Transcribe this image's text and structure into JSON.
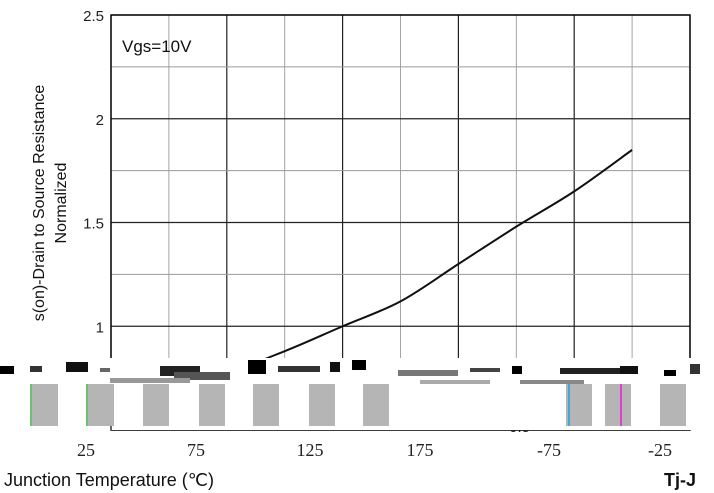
{
  "chart_data": {
    "type": "line",
    "title": "",
    "annotation": "Vgs=10V",
    "ylabel_line1": "RDS(on)-Drain to Source Resistance",
    "ylabel_visible_line1": "s(on)-Drain to Source Resistance",
    "ylabel_line2": "Normalized",
    "xlabel": "Junction Temperature (℃)",
    "xlabel_visible": "Junction Temperature (℃)",
    "xlabel_right_visible": "Tj-J",
    "ylim": [
      0.5,
      2.5
    ],
    "xlim": [
      -75,
      175
    ],
    "grid": true,
    "yticks": [
      "0.5",
      "1",
      "1.5",
      "2",
      "2.5"
    ],
    "xticks_left": [
      "25",
      "75",
      "125",
      "175"
    ],
    "xticks_right": [
      "-75",
      "-25"
    ],
    "series": [
      {
        "x": [
          -75,
          -50,
          -25,
          0,
          25,
          50,
          75,
          100,
          125,
          150
        ],
        "y": [
          0.72,
          0.74,
          0.78,
          0.88,
          1.0,
          1.12,
          1.3,
          1.48,
          1.65,
          1.85
        ]
      }
    ],
    "colors": {
      "line": "#111111",
      "grid": "#9a9a9a",
      "frame": "#000000",
      "bar_fill": "#b5b5b5"
    }
  }
}
